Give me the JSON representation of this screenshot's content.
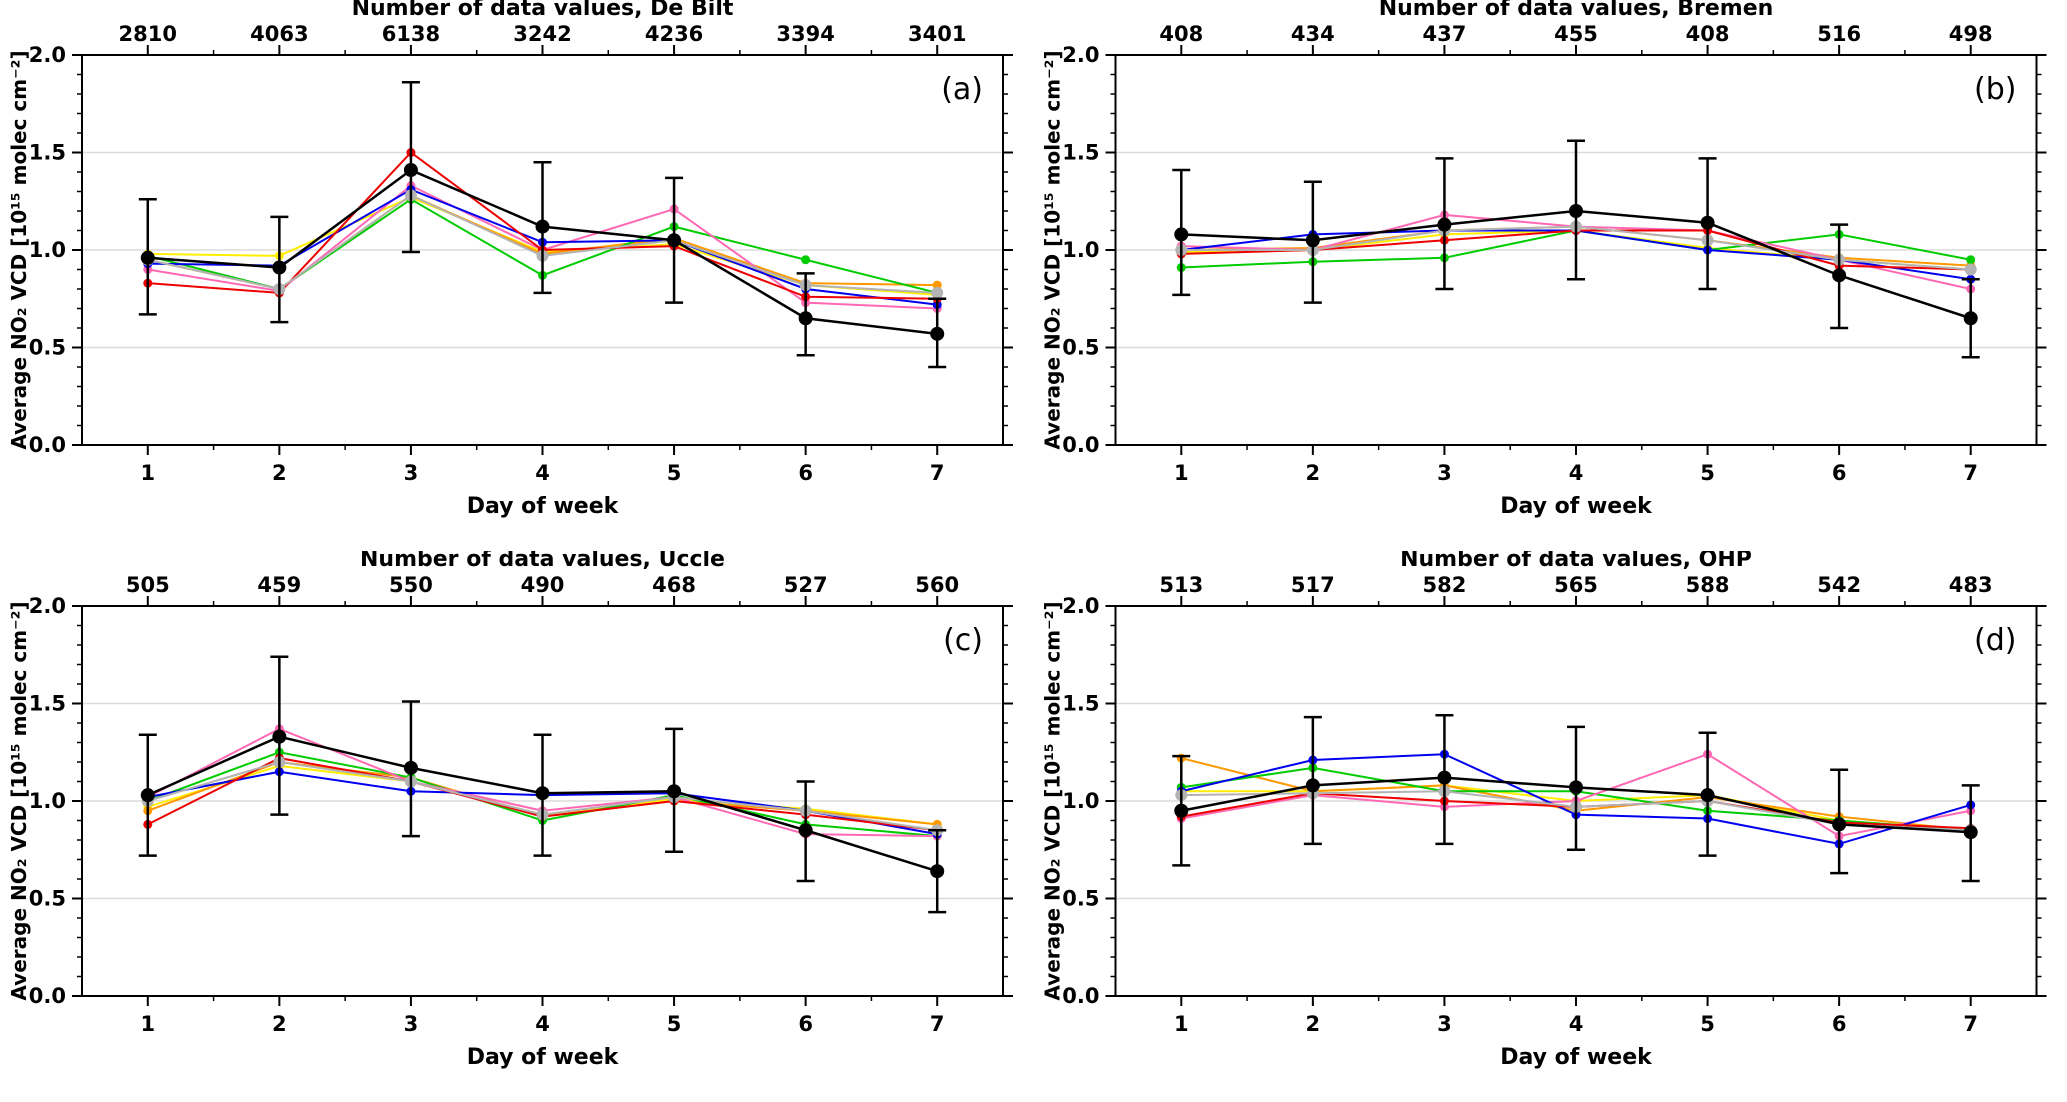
{
  "figure": {
    "background": "#ffffff",
    "frame_color": "#000000",
    "grid_color": "#dcdcdc",
    "series_palette": {
      "black": "#000000",
      "red": "#ee0000",
      "green": "#00cc00",
      "blue": "#0000ee",
      "pink": "#ff69b4",
      "orange": "#ff9900",
      "yellow": "#ffee00",
      "gray": "#b3b3b3"
    }
  },
  "chart_data": [
    {
      "type": "line",
      "panel_label": "(a)",
      "top_axis_title": "Number of data values, De Bilt",
      "top_axis_counts": [
        2810,
        4063,
        6138,
        3242,
        4236,
        3394,
        3401
      ],
      "title": "Number of data values, De Bilt",
      "xlabel": "Day of week",
      "ylabel": "Average NO₂ VCD [10¹⁵ molec cm⁻²]",
      "x": [
        1,
        2,
        3,
        4,
        5,
        6,
        7
      ],
      "xlim": [
        0.5,
        7.5
      ],
      "ylim": [
        0.0,
        2.0
      ],
      "yticks": [
        0.0,
        0.5,
        1.0,
        1.5,
        2.0
      ],
      "gridlines_y": [
        0.5,
        1.0,
        1.5
      ],
      "legend": "none",
      "series": [
        {
          "name": "yellow",
          "color": "#ffee00",
          "values": [
            0.98,
            0.97,
            1.27,
            0.99,
            1.03,
            0.82,
            0.77
          ]
        },
        {
          "name": "orange",
          "color": "#ff9900",
          "values": [
            0.95,
            0.8,
            1.28,
            0.98,
            1.06,
            0.83,
            0.82
          ]
        },
        {
          "name": "green",
          "color": "#00cc00",
          "values": [
            0.97,
            0.8,
            1.26,
            0.87,
            1.12,
            0.95,
            0.78
          ]
        },
        {
          "name": "pink",
          "color": "#ff69b4",
          "values": [
            0.9,
            0.79,
            1.33,
            1.0,
            1.21,
            0.73,
            0.7
          ]
        },
        {
          "name": "blue",
          "color": "#0000ee",
          "values": [
            0.93,
            0.92,
            1.31,
            1.04,
            1.05,
            0.8,
            0.72
          ]
        },
        {
          "name": "red",
          "color": "#ee0000",
          "values": [
            0.83,
            0.78,
            1.5,
            1.0,
            1.02,
            0.76,
            0.75
          ]
        },
        {
          "name": "gray",
          "color": "#b3b3b3",
          "values": [
            0.95,
            0.8,
            1.28,
            0.97,
            1.05,
            0.82,
            0.78
          ]
        },
        {
          "name": "black",
          "color": "#000000",
          "values": [
            0.96,
            0.91,
            1.41,
            1.12,
            1.05,
            0.65,
            0.57
          ],
          "error_low": [
            0.67,
            0.63,
            0.99,
            0.78,
            0.73,
            0.46,
            0.4
          ],
          "error_high": [
            1.26,
            1.17,
            1.86,
            1.45,
            1.37,
            0.88,
            0.75
          ]
        }
      ]
    },
    {
      "type": "line",
      "panel_label": "(b)",
      "top_axis_title": "Number of data values, Bremen",
      "top_axis_counts": [
        408,
        434,
        437,
        455,
        408,
        516,
        498
      ],
      "title": "Number of data values, Bremen",
      "xlabel": "Day of week",
      "ylabel": "Average NO₂ VCD [10¹⁵ molec cm⁻²]",
      "x": [
        1,
        2,
        3,
        4,
        5,
        6,
        7
      ],
      "xlim": [
        0.5,
        7.5
      ],
      "ylim": [
        0.0,
        2.0
      ],
      "yticks": [
        0.0,
        0.5,
        1.0,
        1.5,
        2.0
      ],
      "gridlines_y": [
        0.5,
        1.0,
        1.5
      ],
      "legend": "none",
      "series": [
        {
          "name": "yellow",
          "color": "#ffee00",
          "values": [
            0.99,
            1.0,
            1.08,
            1.1,
            1.01,
            0.95,
            0.9
          ]
        },
        {
          "name": "orange",
          "color": "#ff9900",
          "values": [
            1.0,
            1.01,
            1.1,
            1.12,
            1.05,
            0.96,
            0.92
          ]
        },
        {
          "name": "green",
          "color": "#00cc00",
          "values": [
            0.91,
            0.94,
            0.96,
            1.1,
            1.0,
            1.08,
            0.95
          ]
        },
        {
          "name": "pink",
          "color": "#ff69b4",
          "values": [
            1.02,
            1.0,
            1.18,
            1.12,
            1.1,
            0.95,
            0.8
          ]
        },
        {
          "name": "blue",
          "color": "#0000ee",
          "values": [
            1.0,
            1.08,
            1.1,
            1.1,
            1.0,
            0.95,
            0.85
          ]
        },
        {
          "name": "red",
          "color": "#ee0000",
          "values": [
            0.98,
            1.0,
            1.05,
            1.1,
            1.1,
            0.92,
            0.9
          ]
        },
        {
          "name": "gray",
          "color": "#b3b3b3",
          "values": [
            1.0,
            1.0,
            1.1,
            1.12,
            1.05,
            0.95,
            0.9
          ]
        },
        {
          "name": "black",
          "color": "#000000",
          "values": [
            1.08,
            1.05,
            1.13,
            1.2,
            1.14,
            0.87,
            0.65
          ],
          "error_low": [
            0.77,
            0.73,
            0.8,
            0.85,
            0.8,
            0.6,
            0.45
          ],
          "error_high": [
            1.41,
            1.35,
            1.47,
            1.56,
            1.47,
            1.13,
            0.85
          ]
        }
      ]
    },
    {
      "type": "line",
      "panel_label": "(c)",
      "top_axis_title": "Number of data values, Uccle",
      "top_axis_counts": [
        505,
        459,
        550,
        490,
        468,
        527,
        560
      ],
      "title": "Number of data values, Uccle",
      "xlabel": "Day of week",
      "ylabel": "Average NO₂ VCD [10¹⁵ molec cm⁻²]",
      "x": [
        1,
        2,
        3,
        4,
        5,
        6,
        7
      ],
      "xlim": [
        0.5,
        7.5
      ],
      "ylim": [
        0.0,
        2.0
      ],
      "yticks": [
        0.0,
        0.5,
        1.0,
        1.5,
        2.0
      ],
      "gridlines_y": [
        0.5,
        1.0,
        1.5
      ],
      "legend": "none",
      "series": [
        {
          "name": "yellow",
          "color": "#ffee00",
          "values": [
            0.97,
            1.18,
            1.1,
            0.93,
            1.01,
            0.96,
            0.88
          ]
        },
        {
          "name": "orange",
          "color": "#ff9900",
          "values": [
            0.95,
            1.2,
            1.12,
            0.92,
            1.0,
            0.95,
            0.88
          ]
        },
        {
          "name": "green",
          "color": "#00cc00",
          "values": [
            1.0,
            1.25,
            1.12,
            0.9,
            1.03,
            0.88,
            0.82
          ]
        },
        {
          "name": "pink",
          "color": "#ff69b4",
          "values": [
            1.02,
            1.37,
            1.1,
            0.95,
            1.02,
            0.83,
            0.82
          ]
        },
        {
          "name": "blue",
          "color": "#0000ee",
          "values": [
            1.02,
            1.15,
            1.05,
            1.03,
            1.04,
            0.95,
            0.83
          ]
        },
        {
          "name": "red",
          "color": "#ee0000",
          "values": [
            0.88,
            1.22,
            1.1,
            0.92,
            1.0,
            0.93,
            0.85
          ]
        },
        {
          "name": "gray",
          "color": "#b3b3b3",
          "values": [
            1.0,
            1.2,
            1.1,
            0.93,
            1.02,
            0.95,
            0.85
          ]
        },
        {
          "name": "black",
          "color": "#000000",
          "values": [
            1.03,
            1.33,
            1.17,
            1.04,
            1.05,
            0.85,
            0.64
          ],
          "error_low": [
            0.72,
            0.93,
            0.82,
            0.72,
            0.74,
            0.59,
            0.43
          ],
          "error_high": [
            1.34,
            1.74,
            1.51,
            1.34,
            1.37,
            1.1,
            0.85
          ]
        }
      ]
    },
    {
      "type": "line",
      "panel_label": "(d)",
      "top_axis_title": "Number of data values, OHP",
      "top_axis_counts": [
        513,
        517,
        582,
        565,
        588,
        542,
        483
      ],
      "title": "Number of data values, OHP",
      "xlabel": "Day of week",
      "ylabel": "Average NO₂ VCD [10¹⁵ molec cm⁻²]",
      "x": [
        1,
        2,
        3,
        4,
        5,
        6,
        7
      ],
      "xlim": [
        0.5,
        7.5
      ],
      "ylim": [
        0.0,
        2.0
      ],
      "yticks": [
        0.0,
        0.5,
        1.0,
        1.5,
        2.0
      ],
      "gridlines_y": [
        0.5,
        1.0,
        1.5
      ],
      "legend": "none",
      "series": [
        {
          "name": "yellow",
          "color": "#ffee00",
          "values": [
            1.05,
            1.05,
            1.08,
            1.0,
            1.03,
            0.9,
            0.85
          ]
        },
        {
          "name": "orange",
          "color": "#ff9900",
          "values": [
            1.22,
            1.05,
            1.08,
            0.95,
            1.02,
            0.92,
            0.85
          ]
        },
        {
          "name": "green",
          "color": "#00cc00",
          "values": [
            1.07,
            1.17,
            1.05,
            1.05,
            0.95,
            0.9,
            0.85
          ]
        },
        {
          "name": "pink",
          "color": "#ff69b4",
          "values": [
            0.91,
            1.03,
            0.97,
            1.0,
            1.24,
            0.82,
            0.95
          ]
        },
        {
          "name": "blue",
          "color": "#0000ee",
          "values": [
            1.05,
            1.21,
            1.24,
            0.93,
            0.91,
            0.78,
            0.98
          ]
        },
        {
          "name": "red",
          "color": "#ee0000",
          "values": [
            0.92,
            1.04,
            1.0,
            0.97,
            1.0,
            0.89,
            0.86
          ]
        },
        {
          "name": "gray",
          "color": "#b3b3b3",
          "values": [
            1.03,
            1.04,
            1.05,
            0.97,
            1.0,
            0.88,
            0.85
          ]
        },
        {
          "name": "black",
          "color": "#000000",
          "values": [
            0.95,
            1.08,
            1.12,
            1.07,
            1.03,
            0.88,
            0.84
          ],
          "error_low": [
            0.67,
            0.78,
            0.78,
            0.75,
            0.72,
            0.63,
            0.59
          ],
          "error_high": [
            1.23,
            1.43,
            1.44,
            1.38,
            1.35,
            1.16,
            1.08
          ]
        }
      ]
    }
  ]
}
